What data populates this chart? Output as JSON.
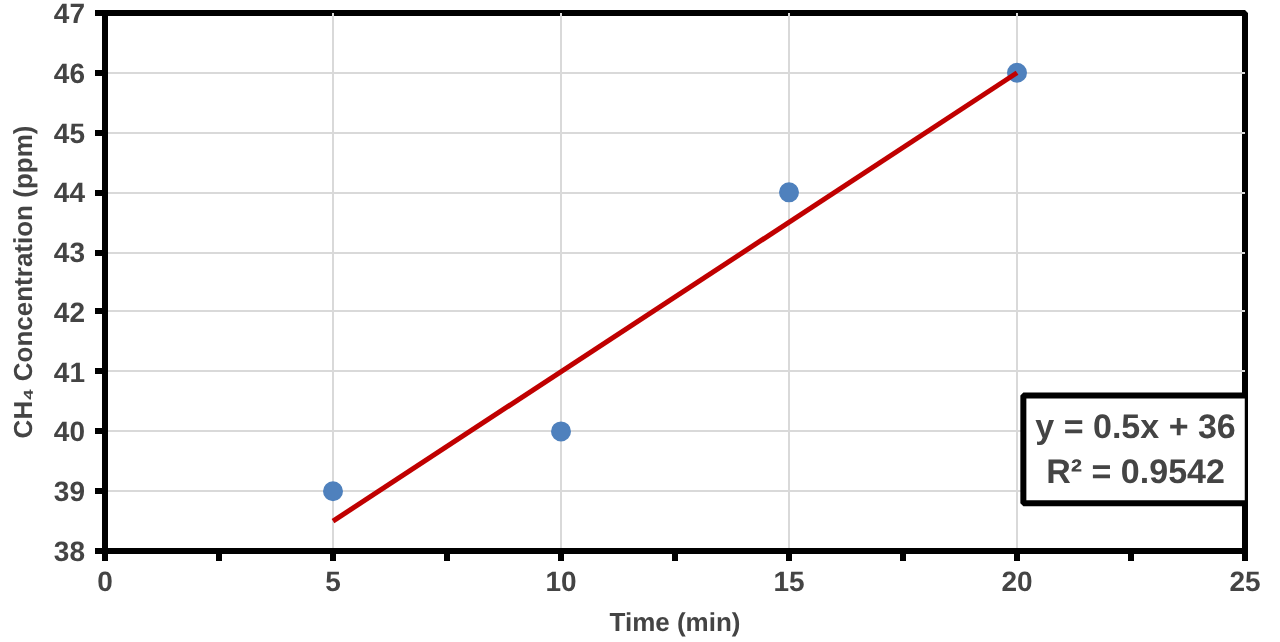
{
  "chart_data": {
    "type": "scatter",
    "xlabel": "Time (min)",
    "ylabel": "CH₄ Concentration (ppm)",
    "x": [
      5,
      10,
      15,
      20
    ],
    "series": [
      {
        "color": "#4f81bd",
        "marker": "circle",
        "values": [
          39,
          40,
          44,
          46
        ]
      },
      {
        "type": "line",
        "color": "#c00000",
        "x": [
          5,
          20
        ],
        "values": [
          38.5,
          46
        ]
      }
    ],
    "xlim": [
      0,
      25
    ],
    "xticks": [
      0,
      5,
      10,
      15,
      20,
      25
    ],
    "ylim": [
      38,
      47
    ],
    "yticks": [
      38,
      39,
      40,
      41,
      42,
      43,
      44,
      45,
      46,
      47
    ],
    "grid": true,
    "annotations": [
      "y = 0.5x + 36",
      "R² = 0.9542"
    ]
  }
}
